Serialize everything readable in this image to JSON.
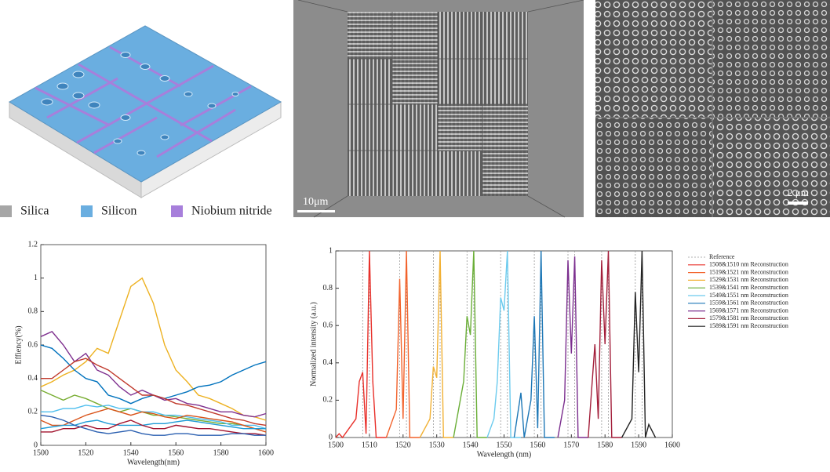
{
  "render": {
    "legend": [
      {
        "label": "Silica",
        "color": "#a6a6a6"
      },
      {
        "label": "Silicon",
        "color": "#6aaee0"
      },
      {
        "label": "Niobium nitride",
        "color": "#a77fdb"
      }
    ]
  },
  "sem": {
    "scale_bars": [
      "10μm",
      "2 μm"
    ]
  },
  "chart_data": [
    {
      "type": "line",
      "x_label": "Wavelength(nm)",
      "y_label": "Effiency(%)",
      "x": [
        1500,
        1505,
        1510,
        1515,
        1520,
        1525,
        1530,
        1535,
        1540,
        1545,
        1550,
        1555,
        1560,
        1565,
        1570,
        1575,
        1580,
        1585,
        1590,
        1595,
        1600
      ],
      "xlim": [
        1500,
        1600
      ],
      "xticks": [
        1500,
        1520,
        1540,
        1560,
        1580,
        1600
      ],
      "ylim": [
        0,
        1.2
      ],
      "yticks": [
        0,
        0.2,
        0.4,
        0.6,
        0.8,
        1,
        1.2
      ],
      "series": [
        {
          "color": "#EDB120",
          "values": [
            0.35,
            0.38,
            0.42,
            0.45,
            0.5,
            0.58,
            0.55,
            0.75,
            0.95,
            1.0,
            0.85,
            0.6,
            0.45,
            0.38,
            0.3,
            0.28,
            0.25,
            0.22,
            0.18,
            0.17,
            0.15
          ]
        },
        {
          "color": "#0072BD",
          "values": [
            0.6,
            0.58,
            0.52,
            0.45,
            0.4,
            0.38,
            0.3,
            0.28,
            0.25,
            0.28,
            0.3,
            0.28,
            0.3,
            0.32,
            0.35,
            0.36,
            0.38,
            0.42,
            0.45,
            0.48,
            0.5
          ]
        },
        {
          "color": "#7E2F8E",
          "values": [
            0.65,
            0.68,
            0.6,
            0.5,
            0.55,
            0.45,
            0.42,
            0.35,
            0.3,
            0.33,
            0.3,
            0.27,
            0.28,
            0.25,
            0.24,
            0.22,
            0.2,
            0.2,
            0.18,
            0.17,
            0.19
          ]
        },
        {
          "color": "#C0392B",
          "values": [
            0.4,
            0.4,
            0.45,
            0.5,
            0.52,
            0.48,
            0.45,
            0.4,
            0.35,
            0.3,
            0.3,
            0.28,
            0.25,
            0.24,
            0.22,
            0.2,
            0.18,
            0.16,
            0.15,
            0.13,
            0.12
          ]
        },
        {
          "color": "#77AC30",
          "values": [
            0.33,
            0.3,
            0.27,
            0.3,
            0.28,
            0.25,
            0.22,
            0.2,
            0.22,
            0.2,
            0.18,
            0.18,
            0.17,
            0.16,
            0.15,
            0.14,
            0.13,
            0.13,
            0.12,
            0.1,
            0.1
          ]
        },
        {
          "color": "#4DBEEE",
          "values": [
            0.2,
            0.2,
            0.22,
            0.22,
            0.24,
            0.23,
            0.24,
            0.22,
            0.22,
            0.2,
            0.2,
            0.18,
            0.18,
            0.17,
            0.16,
            0.15,
            0.14,
            0.12,
            0.12,
            0.12,
            0.1
          ]
        },
        {
          "color": "#D95319",
          "values": [
            0.15,
            0.12,
            0.12,
            0.15,
            0.18,
            0.2,
            0.22,
            0.2,
            0.18,
            0.2,
            0.19,
            0.17,
            0.16,
            0.18,
            0.17,
            0.16,
            0.15,
            0.14,
            0.12,
            0.1,
            0.08
          ]
        },
        {
          "color": "#1f9bd6",
          "values": [
            0.1,
            0.11,
            0.12,
            0.12,
            0.14,
            0.15,
            0.13,
            0.12,
            0.12,
            0.12,
            0.13,
            0.13,
            0.14,
            0.15,
            0.14,
            0.13,
            0.12,
            0.11,
            0.1,
            0.1,
            0.1
          ]
        },
        {
          "color": "#A2142F",
          "values": [
            0.08,
            0.08,
            0.1,
            0.1,
            0.12,
            0.1,
            0.1,
            0.13,
            0.15,
            0.12,
            0.1,
            0.1,
            0.12,
            0.11,
            0.1,
            0.1,
            0.09,
            0.08,
            0.07,
            0.07,
            0.06
          ]
        },
        {
          "color": "#2a5fb0",
          "values": [
            0.18,
            0.17,
            0.15,
            0.12,
            0.1,
            0.08,
            0.07,
            0.08,
            0.09,
            0.07,
            0.06,
            0.06,
            0.07,
            0.07,
            0.06,
            0.06,
            0.06,
            0.07,
            0.07,
            0.06,
            0.06
          ]
        }
      ]
    },
    {
      "type": "line",
      "x_label": "Wavelength (nm)",
      "y_label": "Normalized intensity (a.u.)",
      "xlim": [
        1500,
        1600
      ],
      "xticks": [
        1500,
        1510,
        1520,
        1530,
        1540,
        1550,
        1560,
        1570,
        1580,
        1590,
        1600
      ],
      "ylim": [
        0,
        1
      ],
      "yticks": [
        0,
        0.2,
        0.4,
        0.6,
        0.8,
        1
      ],
      "legend": "outside-right",
      "series": [
        {
          "name": "Reference",
          "color": "#999999",
          "style": "dashed",
          "x": [
            1508,
            1508,
            null,
            1510,
            1510,
            null,
            1519,
            1519,
            null,
            1521,
            1521,
            null,
            1529,
            1529,
            null,
            1531,
            1531,
            null,
            1539,
            1539,
            null,
            1541,
            1541,
            null,
            1549,
            1549,
            null,
            1551,
            1551,
            null,
            1559,
            1559,
            null,
            1561,
            1561,
            null,
            1569,
            1569,
            null,
            1571,
            1571,
            null,
            1579,
            1579,
            null,
            1581,
            1581,
            null,
            1589,
            1589,
            null,
            1591,
            1591
          ],
          "values": [
            0,
            1,
            null,
            0,
            1,
            null,
            0,
            1,
            null,
            0,
            1,
            null,
            0,
            1,
            null,
            0,
            1,
            null,
            0,
            1,
            null,
            0,
            1,
            null,
            0,
            1,
            null,
            0,
            1,
            null,
            0,
            1,
            null,
            0,
            1,
            null,
            0,
            1,
            null,
            0,
            1,
            null,
            0,
            1,
            null,
            0,
            1,
            null,
            0,
            1,
            null,
            0,
            1
          ]
        },
        {
          "name": "1508&1510 nm Reconstruction",
          "color": "#e8302a",
          "x": [
            1500,
            1501,
            1502,
            1506,
            1507,
            1508,
            1509,
            1510,
            1511,
            1512,
            1515
          ],
          "values": [
            0,
            0.02,
            0,
            0.1,
            0.3,
            0.35,
            0.02,
            1,
            0.3,
            0,
            0
          ]
        },
        {
          "name": "1519&1521 nm Reconstruction",
          "color": "#f2622b",
          "x": [
            1515,
            1518,
            1519,
            1520,
            1521,
            1522,
            1525
          ],
          "values": [
            0,
            0.15,
            0.85,
            0.1,
            1,
            0,
            0
          ]
        },
        {
          "name": "1529&1531 nm Reconstruction",
          "color": "#f2b134",
          "x": [
            1525,
            1528,
            1529,
            1530,
            1531,
            1532,
            1535
          ],
          "values": [
            0,
            0.1,
            0.38,
            0.32,
            1,
            0,
            0
          ]
        },
        {
          "name": "1539&1541 nm Reconstruction",
          "color": "#6aae37",
          "x": [
            1535,
            1538,
            1539,
            1540,
            1541,
            1542,
            1545
          ],
          "values": [
            0,
            0.3,
            0.65,
            0.55,
            1,
            0,
            0
          ]
        },
        {
          "name": "1549&1551 nm Reconstruction",
          "color": "#6ccbee",
          "x": [
            1545,
            1547,
            1548,
            1549,
            1550,
            1551,
            1552,
            1555
          ],
          "values": [
            0,
            0.1,
            0.3,
            0.75,
            0.68,
            1,
            0,
            0
          ]
        },
        {
          "name": "1559&1561 nm Reconstruction",
          "color": "#1d77b6",
          "x": [
            1553,
            1555,
            1556,
            1558,
            1559,
            1560,
            1561,
            1562,
            1565
          ],
          "values": [
            0,
            0.24,
            0,
            0.2,
            0.65,
            0.05,
            1,
            0,
            0
          ]
        },
        {
          "name": "1569&1571 nm Reconstruction",
          "color": "#7b2e8e",
          "x": [
            1566,
            1568,
            1569,
            1570,
            1571,
            1572,
            1575
          ],
          "values": [
            0,
            0.2,
            0.95,
            0.45,
            0.97,
            0,
            0
          ]
        },
        {
          "name": "1579&1581 nm Reconstruction",
          "color": "#a31e3a",
          "x": [
            1575,
            1577,
            1578,
            1579,
            1580,
            1581,
            1582,
            1585
          ],
          "values": [
            0,
            0.5,
            0.1,
            0.95,
            0.5,
            1,
            0,
            0
          ]
        },
        {
          "name": "1589&1591 nm Reconstruction",
          "color": "#222222",
          "x": [
            1585,
            1588,
            1589,
            1590,
            1591,
            1592,
            1593,
            1595
          ],
          "values": [
            0,
            0.1,
            0.78,
            0.35,
            1,
            0,
            0.07,
            0
          ]
        }
      ]
    }
  ]
}
